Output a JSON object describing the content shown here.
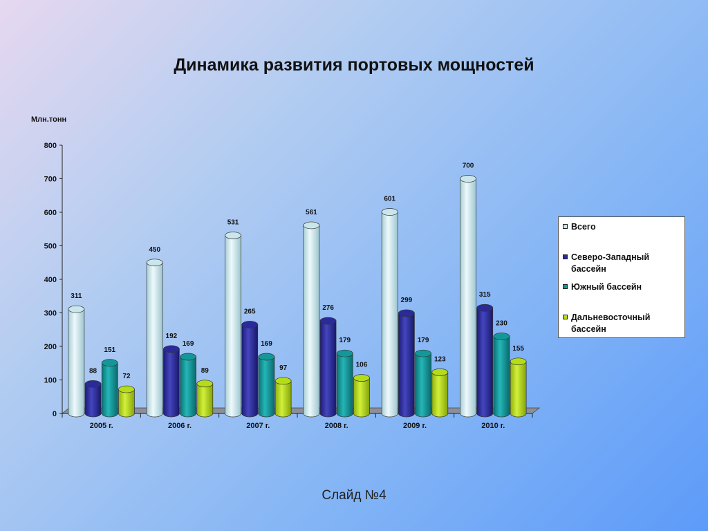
{
  "title": "Динамика развития портовых мощностей",
  "footer": "Слайд №4",
  "chart_data": {
    "type": "bar",
    "title": "Динамика развития портовых мощностей",
    "ylabel": "Млн.тонн",
    "xlabel": "",
    "ylim": [
      0,
      800
    ],
    "yticks": [
      0,
      100,
      200,
      300,
      400,
      500,
      600,
      700,
      800
    ],
    "categories": [
      "2005 г.",
      "2006 г.",
      "2007 г.",
      "2008 г.",
      "2009 г.",
      "2010 г."
    ],
    "series": [
      {
        "name": "Всего",
        "values": [
          311,
          450,
          531,
          561,
          601,
          700
        ],
        "color": "#c9e6ec"
      },
      {
        "name": "Северо-Западный бассейн",
        "values": [
          88,
          192,
          265,
          276,
          299,
          315
        ],
        "color": "#2a2a9a"
      },
      {
        "name": "Южный бассейн",
        "values": [
          151,
          169,
          169,
          179,
          179,
          230
        ],
        "color": "#13989a"
      },
      {
        "name": "Дальневосточный бассейн",
        "values": [
          72,
          89,
          97,
          106,
          123,
          155
        ],
        "color": "#b4dc18"
      }
    ],
    "legend_position": "right",
    "grid": false,
    "bar_style": "3d-cylinder"
  }
}
